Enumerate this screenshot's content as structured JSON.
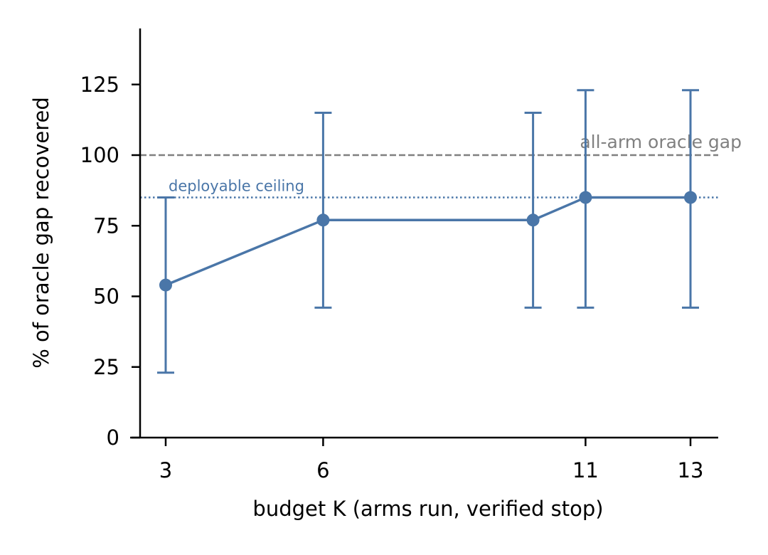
{
  "chart_data": {
    "type": "line",
    "title": "",
    "xlabel": "budget K (arms run, verified stop)",
    "ylabel": "% of oracle gap recovered",
    "xlim": [
      2.2,
      13.5
    ],
    "ylim": [
      0,
      145
    ],
    "x_ticks": [
      3,
      6,
      11,
      13
    ],
    "y_ticks": [
      0,
      25,
      50,
      75,
      100,
      125
    ],
    "grid": false,
    "legend": "none",
    "series": [
      {
        "color": "#4a76a8",
        "points": [
          {
            "x": 3,
            "y": 54,
            "err_low": 23,
            "err_high": 85
          },
          {
            "x": 6,
            "y": 77,
            "err_low": 46,
            "err_high": 115
          },
          {
            "x": 10,
            "y": 77,
            "err_low": 46,
            "err_high": 115
          },
          {
            "x": 11,
            "y": 85,
            "err_low": 46,
            "err_high": 123
          },
          {
            "x": 13,
            "y": 85,
            "err_low": 46,
            "err_high": 123
          }
        ]
      }
    ],
    "reference_lines": [
      {
        "y": 100,
        "label": "all-arm oracle gap",
        "style": "dashed",
        "color": "#808080"
      },
      {
        "y": 85,
        "label": "deployable ceiling",
        "style": "dotted",
        "color": "#4a76a8"
      }
    ]
  }
}
